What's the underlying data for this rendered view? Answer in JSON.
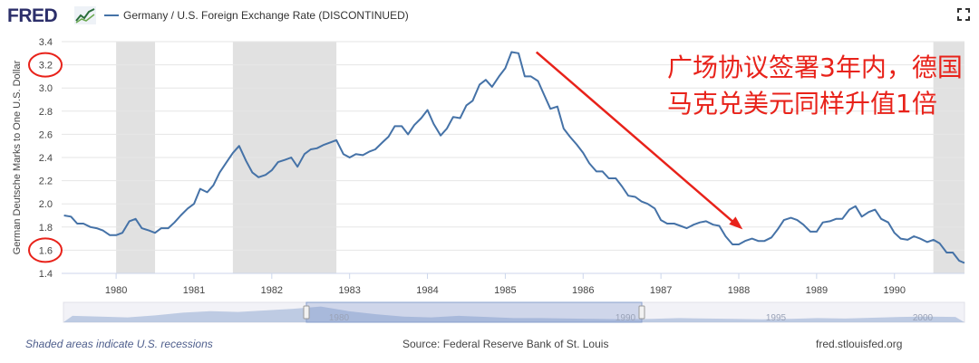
{
  "header": {
    "logo_text": "FRED",
    "legend_label": "Germany / U.S. Foreign Exchange Rate (DISCONTINUED)",
    "series_color": "#4572a7"
  },
  "annotation": {
    "text": "广场协议签署3年内，德国马克兑美元同样升值1倍",
    "color": "#e8221a"
  },
  "footer": {
    "recession_note": "Shaded areas indicate U.S. recessions",
    "source": "Source: Federal Reserve Bank of St. Louis",
    "site": "fred.stlouisfed.org"
  },
  "navigator": {
    "labels": [
      "1980",
      "1990",
      "1995",
      "2000"
    ]
  },
  "chart_data": {
    "type": "line",
    "title": "Germany / U.S. Foreign Exchange Rate (DISCONTINUED)",
    "ylabel": "German Deutsche Marks to One U.S. Dollar",
    "xlabel": "",
    "xlim": [
      1979.3,
      1990.9
    ],
    "ylim": [
      1.4,
      3.4
    ],
    "yticks": [
      "1.4",
      "1.6",
      "1.8",
      "2.0",
      "2.2",
      "2.4",
      "2.6",
      "2.8",
      "3.0",
      "3.2",
      "3.4"
    ],
    "xticks": [
      "1980",
      "1981",
      "1982",
      "1983",
      "1984",
      "1985",
      "1986",
      "1987",
      "1988",
      "1989",
      "1990"
    ],
    "highlighted_ticks": [
      "3.2",
      "1.6"
    ],
    "recessions": [
      [
        1980.0,
        1980.5
      ],
      [
        1981.5,
        1982.83
      ],
      [
        1990.5,
        1990.9
      ]
    ],
    "series": [
      {
        "name": "Germany / U.S. Foreign Exchange Rate (DISCONTINUED)",
        "points": [
          [
            1979.33,
            1.9
          ],
          [
            1979.42,
            1.89
          ],
          [
            1979.5,
            1.83
          ],
          [
            1979.58,
            1.83
          ],
          [
            1979.67,
            1.8
          ],
          [
            1979.75,
            1.79
          ],
          [
            1979.83,
            1.77
          ],
          [
            1979.92,
            1.73
          ],
          [
            1980.0,
            1.73
          ],
          [
            1980.08,
            1.75
          ],
          [
            1980.17,
            1.85
          ],
          [
            1980.25,
            1.87
          ],
          [
            1980.33,
            1.79
          ],
          [
            1980.42,
            1.77
          ],
          [
            1980.5,
            1.75
          ],
          [
            1980.58,
            1.79
          ],
          [
            1980.67,
            1.79
          ],
          [
            1980.75,
            1.84
          ],
          [
            1980.83,
            1.9
          ],
          [
            1980.92,
            1.96
          ],
          [
            1981.0,
            2.0
          ],
          [
            1981.08,
            2.13
          ],
          [
            1981.17,
            2.1
          ],
          [
            1981.25,
            2.16
          ],
          [
            1981.33,
            2.27
          ],
          [
            1981.42,
            2.36
          ],
          [
            1981.5,
            2.44
          ],
          [
            1981.58,
            2.5
          ],
          [
            1981.67,
            2.37
          ],
          [
            1981.75,
            2.27
          ],
          [
            1981.83,
            2.23
          ],
          [
            1981.92,
            2.25
          ],
          [
            1982.0,
            2.29
          ],
          [
            1982.08,
            2.36
          ],
          [
            1982.17,
            2.38
          ],
          [
            1982.25,
            2.4
          ],
          [
            1982.33,
            2.32
          ],
          [
            1982.42,
            2.43
          ],
          [
            1982.5,
            2.47
          ],
          [
            1982.58,
            2.48
          ],
          [
            1982.67,
            2.51
          ],
          [
            1982.75,
            2.53
          ],
          [
            1982.83,
            2.55
          ],
          [
            1982.92,
            2.43
          ],
          [
            1983.0,
            2.4
          ],
          [
            1983.08,
            2.43
          ],
          [
            1983.17,
            2.42
          ],
          [
            1983.25,
            2.45
          ],
          [
            1983.33,
            2.47
          ],
          [
            1983.42,
            2.53
          ],
          [
            1983.5,
            2.58
          ],
          [
            1983.58,
            2.67
          ],
          [
            1983.67,
            2.67
          ],
          [
            1983.75,
            2.6
          ],
          [
            1983.83,
            2.68
          ],
          [
            1983.92,
            2.74
          ],
          [
            1984.0,
            2.81
          ],
          [
            1984.08,
            2.69
          ],
          [
            1984.17,
            2.59
          ],
          [
            1984.25,
            2.65
          ],
          [
            1984.33,
            2.75
          ],
          [
            1984.42,
            2.74
          ],
          [
            1984.5,
            2.85
          ],
          [
            1984.58,
            2.89
          ],
          [
            1984.67,
            3.03
          ],
          [
            1984.75,
            3.07
          ],
          [
            1984.83,
            3.01
          ],
          [
            1984.92,
            3.1
          ],
          [
            1985.0,
            3.17
          ],
          [
            1985.08,
            3.31
          ],
          [
            1985.17,
            3.3
          ],
          [
            1985.25,
            3.1
          ],
          [
            1985.33,
            3.1
          ],
          [
            1985.42,
            3.06
          ],
          [
            1985.5,
            2.94
          ],
          [
            1985.58,
            2.82
          ],
          [
            1985.67,
            2.84
          ],
          [
            1985.75,
            2.65
          ],
          [
            1985.83,
            2.58
          ],
          [
            1985.92,
            2.51
          ],
          [
            1986.0,
            2.44
          ],
          [
            1986.08,
            2.35
          ],
          [
            1986.17,
            2.28
          ],
          [
            1986.25,
            2.28
          ],
          [
            1986.33,
            2.22
          ],
          [
            1986.42,
            2.22
          ],
          [
            1986.5,
            2.15
          ],
          [
            1986.58,
            2.07
          ],
          [
            1986.67,
            2.06
          ],
          [
            1986.75,
            2.02
          ],
          [
            1986.83,
            2.0
          ],
          [
            1986.92,
            1.96
          ],
          [
            1987.0,
            1.86
          ],
          [
            1987.08,
            1.83
          ],
          [
            1987.17,
            1.83
          ],
          [
            1987.25,
            1.81
          ],
          [
            1987.33,
            1.79
          ],
          [
            1987.42,
            1.82
          ],
          [
            1987.5,
            1.84
          ],
          [
            1987.58,
            1.85
          ],
          [
            1987.67,
            1.82
          ],
          [
            1987.75,
            1.81
          ],
          [
            1987.83,
            1.72
          ],
          [
            1987.92,
            1.65
          ],
          [
            1988.0,
            1.65
          ],
          [
            1988.08,
            1.68
          ],
          [
            1988.17,
            1.7
          ],
          [
            1988.25,
            1.68
          ],
          [
            1988.33,
            1.68
          ],
          [
            1988.42,
            1.71
          ],
          [
            1988.5,
            1.78
          ],
          [
            1988.58,
            1.86
          ],
          [
            1988.67,
            1.88
          ],
          [
            1988.75,
            1.86
          ],
          [
            1988.83,
            1.82
          ],
          [
            1988.92,
            1.76
          ],
          [
            1989.0,
            1.76
          ],
          [
            1989.08,
            1.84
          ],
          [
            1989.17,
            1.85
          ],
          [
            1989.25,
            1.87
          ],
          [
            1989.33,
            1.87
          ],
          [
            1989.42,
            1.95
          ],
          [
            1989.5,
            1.98
          ],
          [
            1989.58,
            1.89
          ],
          [
            1989.67,
            1.93
          ],
          [
            1989.75,
            1.95
          ],
          [
            1989.83,
            1.87
          ],
          [
            1989.92,
            1.84
          ],
          [
            1990.0,
            1.75
          ],
          [
            1990.08,
            1.7
          ],
          [
            1990.17,
            1.69
          ],
          [
            1990.25,
            1.72
          ],
          [
            1990.33,
            1.7
          ],
          [
            1990.42,
            1.67
          ],
          [
            1990.5,
            1.69
          ],
          [
            1990.58,
            1.66
          ],
          [
            1990.67,
            1.58
          ],
          [
            1990.75,
            1.58
          ],
          [
            1990.83,
            1.51
          ],
          [
            1990.9,
            1.49
          ]
        ]
      }
    ]
  }
}
